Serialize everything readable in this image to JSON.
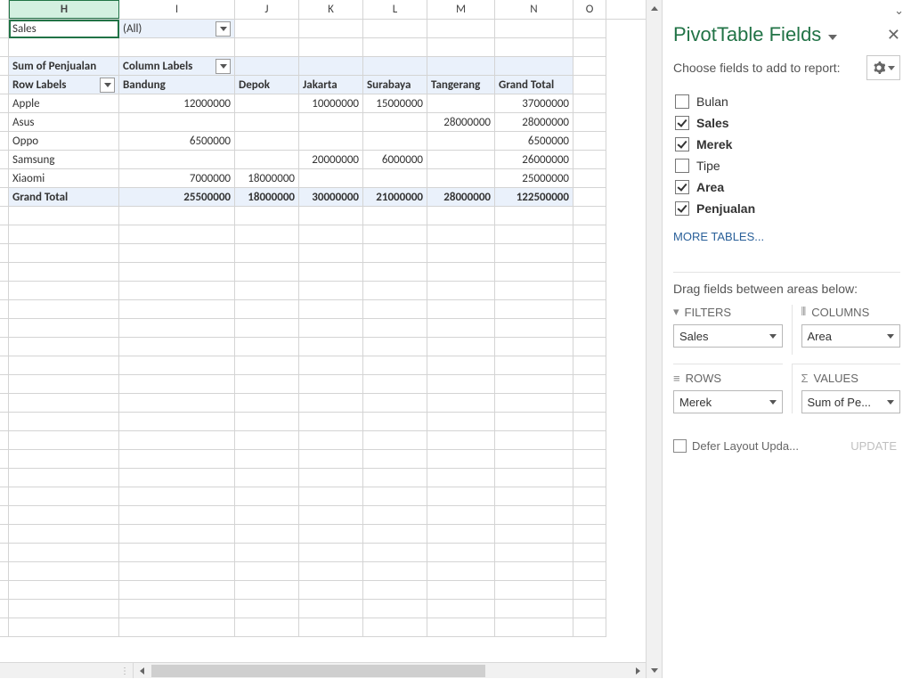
{
  "columns": {
    "letters": [
      "H",
      "I",
      "J",
      "K",
      "L",
      "M",
      "N",
      "O"
    ],
    "widths": [
      124,
      130,
      72,
      72,
      72,
      76,
      88,
      37
    ]
  },
  "filter": {
    "field": "Sales",
    "value": "(All)"
  },
  "pivot": {
    "sum_label": "Sum of Penjualan",
    "column_labels_text": "Column Labels",
    "row_labels_text": "Row Labels",
    "col_headers": [
      "Bandung",
      "Depok",
      "Jakarta",
      "Surabaya",
      "Tangerang",
      "Grand Total"
    ],
    "rows": [
      {
        "label": "Apple",
        "cells": [
          "12000000",
          "",
          "10000000",
          "15000000",
          "",
          "37000000"
        ]
      },
      {
        "label": "Asus",
        "cells": [
          "",
          "",
          "",
          "",
          "28000000",
          "28000000"
        ]
      },
      {
        "label": "Oppo",
        "cells": [
          "6500000",
          "",
          "",
          "",
          "",
          "6500000"
        ]
      },
      {
        "label": "Samsung",
        "cells": [
          "",
          "",
          "20000000",
          "6000000",
          "",
          "26000000"
        ]
      },
      {
        "label": "Xiaomi",
        "cells": [
          "7000000",
          "18000000",
          "",
          "",
          "",
          "25000000"
        ]
      }
    ],
    "grand_total_label": "Grand Total",
    "grand_total": [
      "25500000",
      "18000000",
      "30000000",
      "21000000",
      "28000000",
      "122500000"
    ]
  },
  "panel": {
    "title": "PivotTable Fields",
    "subtitle": "Choose fields to add to report:",
    "fields": [
      {
        "label": "Bulan",
        "checked": false,
        "bold": false
      },
      {
        "label": "Sales",
        "checked": true,
        "bold": true
      },
      {
        "label": "Merek",
        "checked": true,
        "bold": true
      },
      {
        "label": "Tipe",
        "checked": false,
        "bold": false
      },
      {
        "label": "Area",
        "checked": true,
        "bold": true
      },
      {
        "label": "Penjualan",
        "checked": true,
        "bold": true
      }
    ],
    "more_tables": "MORE TABLES...",
    "areas_hint": "Drag fields between areas below:",
    "filters_label": "FILTERS",
    "columns_label": "COLUMNS",
    "rows_label": "ROWS",
    "values_label": "VALUES",
    "filters_value": "Sales",
    "columns_value": "Area",
    "rows_value": "Merek",
    "values_value": "Sum of Pe...",
    "defer_label": "Defer Layout Upda...",
    "update_label": "UPDATE"
  },
  "colors": {
    "accent": "#217346",
    "pivot_bg": "#eaf1fb"
  }
}
